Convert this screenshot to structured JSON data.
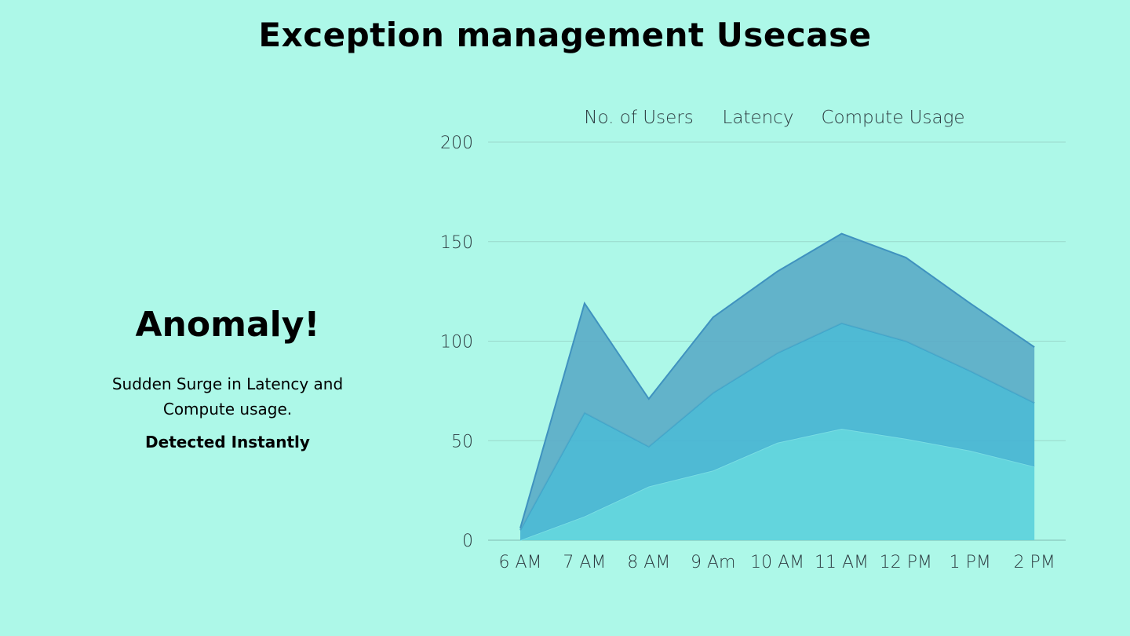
{
  "title": "Exception management Usecase",
  "panel": {
    "heading": "Anomaly!",
    "description_lines": [
      "Sudden Surge in Latency and",
      "Compute usage."
    ],
    "status": "Detected Instantly"
  },
  "colors": {
    "background": "#adf8e8",
    "gridline": "#9ad8cb",
    "series": [
      "#5fd3dc",
      "#45b3d2",
      "#5aabc7"
    ],
    "series_stroke": [
      "#79dde3",
      "#3fa6cb",
      "#3f92bf"
    ]
  },
  "chart_data": {
    "type": "area",
    "stacked": true,
    "categories": [
      "6 AM",
      "7 AM",
      "8 AM",
      "9 Am",
      "10 AM",
      "11 AM",
      "12 PM",
      "1 PM",
      "2 PM"
    ],
    "series": [
      {
        "name": "No. of Users",
        "values": [
          0,
          12,
          27,
          35,
          49,
          56,
          51,
          45,
          37
        ]
      },
      {
        "name": "Latency",
        "values": [
          5,
          52,
          20,
          39,
          45,
          53,
          49,
          40,
          32
        ]
      },
      {
        "name": "Compute Usage",
        "values": [
          1,
          55,
          24,
          38,
          41,
          45,
          42,
          34,
          28
        ]
      }
    ],
    "ylim": [
      0,
      200
    ],
    "yticks": [
      0,
      50,
      100,
      150,
      200
    ],
    "grid": true,
    "legend_position": "top"
  }
}
